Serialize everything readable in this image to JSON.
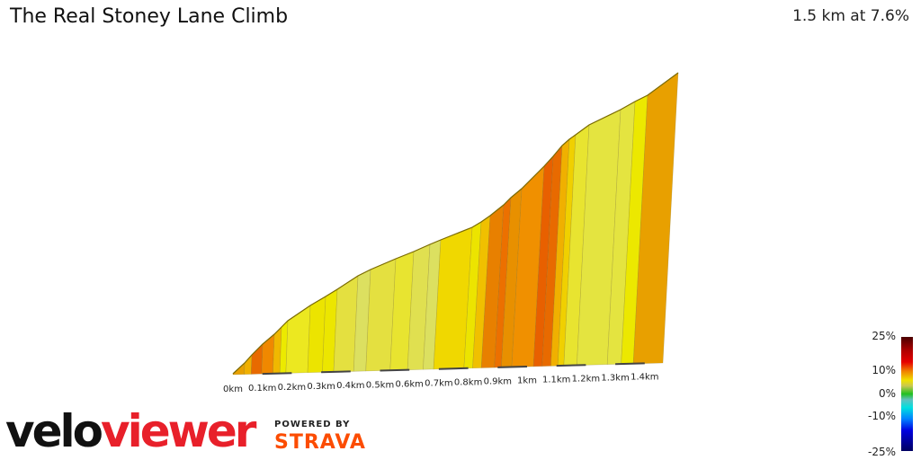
{
  "header": {
    "title": "The Real Stoney Lane Climb",
    "summary": "1.5 km at 7.6%"
  },
  "profile": {
    "distance_labels": [
      "0km",
      "0.1km",
      "0.2km",
      "0.3km",
      "0.4km",
      "0.5km",
      "0.6km",
      "0.7km",
      "0.8km",
      "0.9km",
      "1km",
      "1.1km",
      "1.2km",
      "1.3km",
      "1.4km"
    ],
    "segment_colors": [
      "#e8a000",
      "#f0b000",
      "#e86a00",
      "#f08800",
      "#f0b800",
      "#ecea00",
      "#ece820",
      "#ece400",
      "#ece600",
      "#e4e040",
      "#dce060",
      "#e4e040",
      "#e8e430",
      "#e0e050",
      "#dce060",
      "#f0d800",
      "#ece400",
      "#f0c000",
      "#e88000",
      "#ec7000",
      "#e89000",
      "#f09000",
      "#e86000",
      "#e86a00",
      "#f0b000",
      "#f0d000",
      "#e8e430",
      "#e4e440",
      "#e4e440",
      "#ece800"
    ]
  },
  "branding": {
    "logo_part1": "velo",
    "logo_part2": "viewer",
    "powered_by": "POWERED BY",
    "strava": "STRAVA"
  },
  "legend": {
    "labels": [
      "25%",
      "10%",
      "0%",
      "-10%",
      "-25%"
    ]
  }
}
